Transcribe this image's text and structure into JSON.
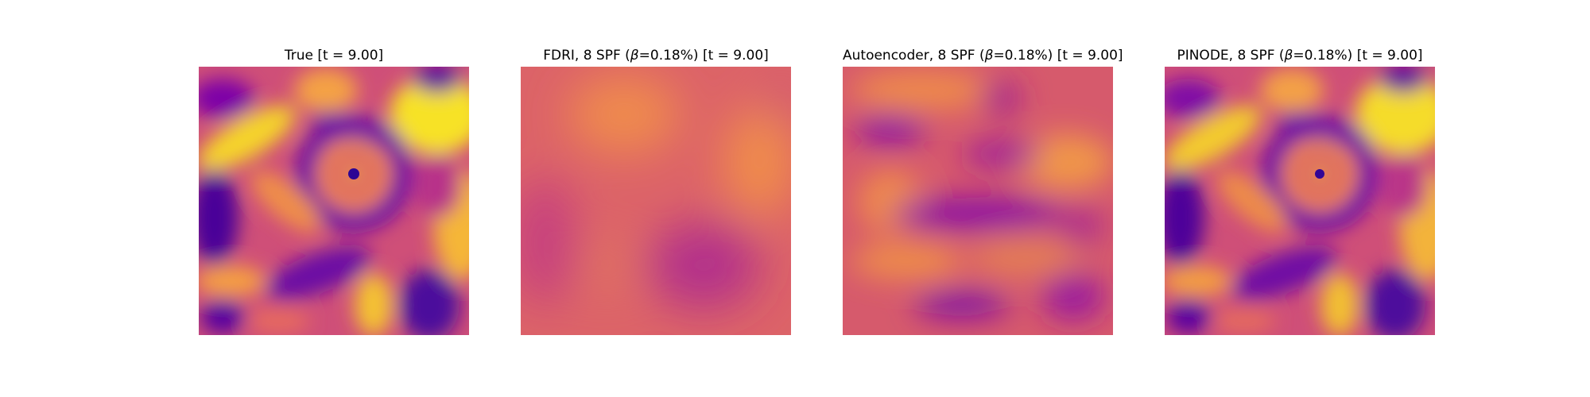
{
  "panels": [
    {
      "title_pre": "True [t = 9.00]",
      "beta_symbol": "",
      "title_post": "",
      "style": "true"
    },
    {
      "title_pre": "FDRI, 8 SPF (",
      "beta_symbol": "β",
      "title_post": "=0.18%) [t = 9.00]",
      "style": "fdri"
    },
    {
      "title_pre": "Autoencoder, 8 SPF (",
      "beta_symbol": "β",
      "title_post": "=0.18%) [t = 9.00]",
      "style": "autoencoder"
    },
    {
      "title_pre": "PINODE, 8 SPF (",
      "beta_symbol": "β",
      "title_post": "=0.18%) [t = 9.00]",
      "style": "pinode"
    }
  ],
  "colormap": "plasma",
  "colors": {
    "deep_purple": "#3d0599",
    "purple": "#7d05a8",
    "magenta": "#b1308b",
    "pink": "#dc5e6b",
    "orange": "#f0904a",
    "yellow": "#f8e91c"
  }
}
